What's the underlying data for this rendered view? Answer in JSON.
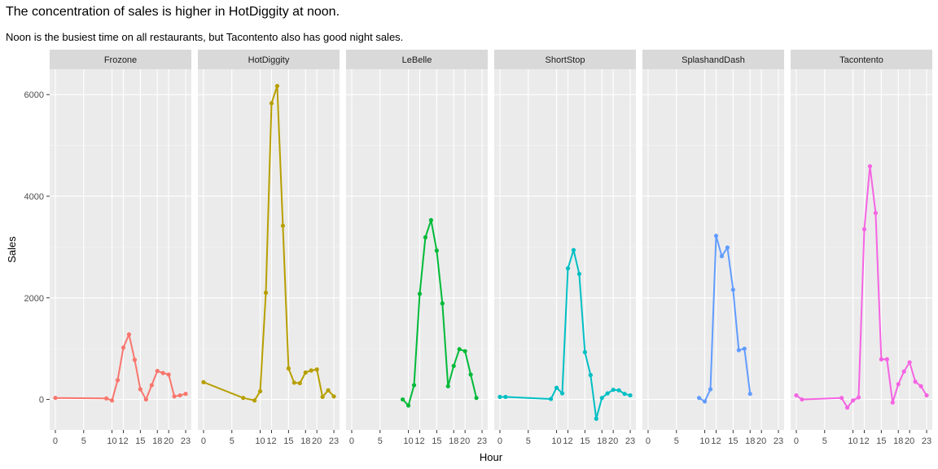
{
  "title": "The concentration of sales is higher in HotDiggity at noon.",
  "subtitle": "Noon is the busiest time on all restaurants, but Tacontento also has good night sales.",
  "chart_data": {
    "type": "line",
    "xlabel": "Hour",
    "ylabel": "Sales",
    "x_ticks": [
      0,
      5,
      10,
      12,
      15,
      18,
      20,
      23
    ],
    "y_ticks": [
      0,
      2000,
      4000,
      6000
    ],
    "ylim": [
      -600,
      6500
    ],
    "xlim": [
      -1,
      24
    ],
    "grid": true,
    "legend": "none",
    "series": [
      {
        "name": "Frozone",
        "color": "#F8766D",
        "x": [
          0,
          9,
          10,
          11,
          12,
          13,
          14,
          15,
          16,
          17,
          18,
          19,
          20,
          21,
          22,
          23
        ],
        "y": [
          30,
          20,
          -20,
          380,
          1020,
          1280,
          780,
          200,
          0,
          280,
          560,
          520,
          490,
          60,
          80,
          110
        ]
      },
      {
        "name": "HotDiggity",
        "color": "#B79F00",
        "x": [
          0,
          7,
          9,
          10,
          11,
          12,
          13,
          14,
          15,
          16,
          17,
          18,
          19,
          20,
          21,
          22,
          23
        ],
        "y": [
          340,
          30,
          -20,
          160,
          2100,
          5830,
          6170,
          3420,
          610,
          330,
          320,
          530,
          570,
          590,
          50,
          180,
          60
        ]
      },
      {
        "name": "LeBelle",
        "color": "#00BA38",
        "x": [
          9,
          10,
          11,
          12,
          13,
          14,
          15,
          16,
          17,
          18,
          19,
          20,
          21,
          22
        ],
        "y": [
          0,
          -120,
          280,
          2080,
          3190,
          3530,
          2930,
          1890,
          260,
          660,
          990,
          950,
          490,
          30
        ]
      },
      {
        "name": "ShortStop",
        "color": "#00BFC4",
        "x": [
          0,
          1,
          9,
          10,
          11,
          12,
          13,
          14,
          15,
          16,
          17,
          18,
          19,
          20,
          21,
          22,
          23
        ],
        "y": [
          50,
          50,
          10,
          230,
          120,
          2580,
          2940,
          2470,
          930,
          480,
          -380,
          30,
          120,
          190,
          180,
          110,
          80
        ]
      },
      {
        "name": "SplashandDash",
        "color": "#619CFF",
        "x": [
          9,
          10,
          11,
          12,
          13,
          14,
          15,
          16,
          17,
          18
        ],
        "y": [
          30,
          -40,
          200,
          3220,
          2820,
          2990,
          2160,
          970,
          1000,
          110
        ]
      },
      {
        "name": "Tacontento",
        "color": "#F564E3",
        "x": [
          0,
          1,
          8,
          9,
          10,
          11,
          12,
          13,
          14,
          15,
          16,
          17,
          18,
          19,
          20,
          21,
          22,
          23
        ],
        "y": [
          80,
          0,
          30,
          -160,
          -20,
          40,
          3350,
          4590,
          3670,
          790,
          790,
          -60,
          300,
          550,
          730,
          350,
          260,
          80
        ]
      }
    ]
  }
}
